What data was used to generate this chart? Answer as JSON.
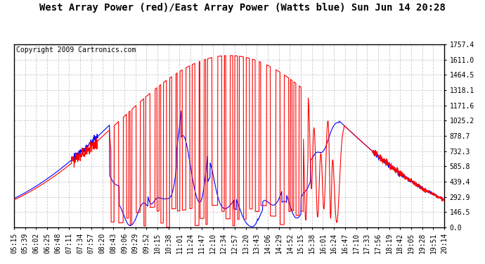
{
  "title": "West Array Power (red)/East Array Power (Watts blue) Sun Jun 14 20:28",
  "copyright": "Copyright 2009 Cartronics.com",
  "yticks": [
    0.0,
    146.5,
    292.9,
    439.4,
    585.8,
    732.3,
    878.7,
    1025.2,
    1171.6,
    1318.1,
    1464.5,
    1611.0,
    1757.4
  ],
  "ylim": [
    0,
    1757.4
  ],
  "xtick_labels": [
    "05:15",
    "05:39",
    "06:02",
    "06:25",
    "06:48",
    "07:11",
    "07:34",
    "07:57",
    "08:20",
    "08:43",
    "09:06",
    "09:29",
    "09:52",
    "10:15",
    "10:38",
    "11:01",
    "11:24",
    "11:47",
    "12:10",
    "12:34",
    "12:57",
    "13:20",
    "13:43",
    "14:06",
    "14:29",
    "14:52",
    "15:15",
    "15:38",
    "16:01",
    "16:24",
    "16:47",
    "17:10",
    "17:33",
    "17:56",
    "18:19",
    "18:42",
    "19:05",
    "19:28",
    "19:51",
    "20:14"
  ],
  "bg_color": "#ffffff",
  "plot_bg_color": "#ffffff",
  "grid_color": "#cccccc",
  "red_color": "#ff0000",
  "blue_color": "#0000ff",
  "title_color": "#000000",
  "copyright_color": "#000000",
  "linewidth": 0.8,
  "title_fontsize": 10,
  "copyright_fontsize": 7,
  "tick_fontsize": 7
}
